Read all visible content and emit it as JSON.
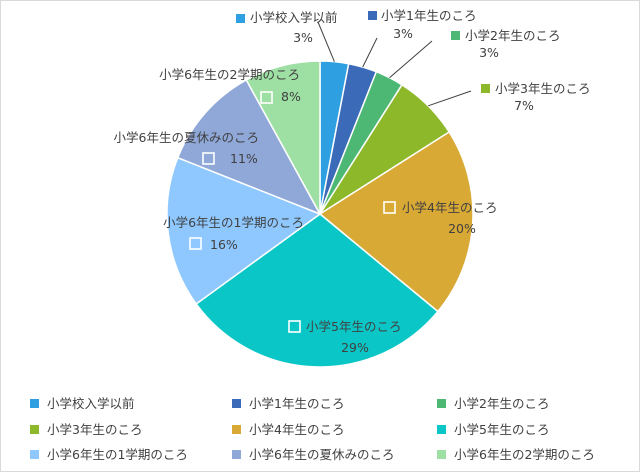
{
  "chart_data": {
    "type": "pie",
    "categories": [
      "小学校入学以前",
      "小学1年生のころ",
      "小学2年生のころ",
      "小学3年生のころ",
      "小学4年生のころ",
      "小学5年生のころ",
      "小学6年生の1学期のころ",
      "小学6年生の夏休みのころ",
      "小学6年生の2学期のころ"
    ],
    "values": [
      3,
      3,
      3,
      7,
      20,
      29,
      16,
      11,
      8
    ],
    "value_labels": [
      "3%",
      "3%",
      "3%",
      "7%",
      "20%",
      "29%",
      "16%",
      "11%",
      "8%"
    ],
    "colors": [
      "#2e9fe0",
      "#3a6ab8",
      "#4cb874",
      "#8db82a",
      "#d9a935",
      "#0bc6c6",
      "#8ec8ff",
      "#8fa8d8",
      "#9ee0a4"
    ],
    "legend_position": "bottom",
    "data_labels": true
  }
}
